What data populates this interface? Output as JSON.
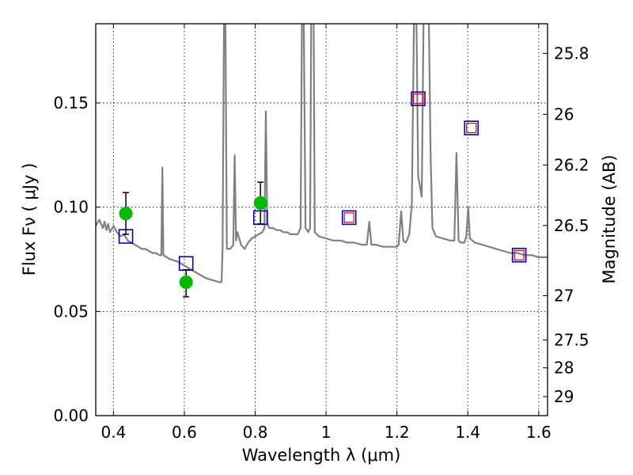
{
  "chart_data": {
    "type": "line",
    "title": "",
    "xlabel": "Wavelength  λ (μm)",
    "ylabel": "Flux  Fν  ( μJy )",
    "y2label": "Magnitude (AB)",
    "xlim": [
      0.35,
      1.625
    ],
    "ylim": [
      0.0,
      0.188
    ],
    "grid": true,
    "x_ticks": [
      {
        "value": 0.4,
        "label": "0.4"
      },
      {
        "value": 0.6,
        "label": "0.6"
      },
      {
        "value": 0.8,
        "label": "0.8"
      },
      {
        "value": 1.0,
        "label": "1"
      },
      {
        "value": 1.2,
        "label": "1.2"
      },
      {
        "value": 1.4,
        "label": "1.4"
      },
      {
        "value": 1.6,
        "label": "1.6"
      }
    ],
    "y_ticks": [
      {
        "value": 0.0,
        "label": "0.00"
      },
      {
        "value": 0.05,
        "label": "0.05"
      },
      {
        "value": 0.1,
        "label": "0.10"
      },
      {
        "value": 0.15,
        "label": "0.15"
      }
    ],
    "y2_ticks": [
      {
        "value": 25.8,
        "label": "25.8"
      },
      {
        "value": 26.0,
        "label": "26"
      },
      {
        "value": 26.2,
        "label": "26.2"
      },
      {
        "value": 26.5,
        "label": "26.5"
      },
      {
        "value": 27.0,
        "label": "27"
      },
      {
        "value": 27.5,
        "label": "27.5"
      },
      {
        "value": 28.0,
        "label": "28"
      },
      {
        "value": 29.0,
        "label": "29"
      }
    ],
    "series": [
      {
        "kind": "spectrum",
        "color": "#808080",
        "points": [
          [
            0.35,
            0.091
          ],
          [
            0.36,
            0.094
          ],
          [
            0.365,
            0.092
          ],
          [
            0.37,
            0.09
          ],
          [
            0.375,
            0.093
          ],
          [
            0.38,
            0.089
          ],
          [
            0.385,
            0.092
          ],
          [
            0.39,
            0.088
          ],
          [
            0.4,
            0.091
          ],
          [
            0.41,
            0.088
          ],
          [
            0.42,
            0.086
          ],
          [
            0.43,
            0.087
          ],
          [
            0.44,
            0.084
          ],
          [
            0.45,
            0.083
          ],
          [
            0.46,
            0.082
          ],
          [
            0.47,
            0.081
          ],
          [
            0.48,
            0.08
          ],
          [
            0.49,
            0.08
          ],
          [
            0.5,
            0.079
          ],
          [
            0.51,
            0.078
          ],
          [
            0.52,
            0.078
          ],
          [
            0.53,
            0.077
          ],
          [
            0.535,
            0.077
          ],
          [
            0.538,
            0.119
          ],
          [
            0.541,
            0.077
          ],
          [
            0.55,
            0.076
          ],
          [
            0.56,
            0.075
          ],
          [
            0.58,
            0.074
          ],
          [
            0.6,
            0.072
          ],
          [
            0.62,
            0.07
          ],
          [
            0.64,
            0.068
          ],
          [
            0.66,
            0.066
          ],
          [
            0.68,
            0.065
          ],
          [
            0.7,
            0.064
          ],
          [
            0.705,
            0.064
          ],
          [
            0.708,
            0.08
          ],
          [
            0.712,
            0.19
          ],
          [
            0.716,
            0.19
          ],
          [
            0.72,
            0.08
          ],
          [
            0.73,
            0.08
          ],
          [
            0.738,
            0.082
          ],
          [
            0.742,
            0.125
          ],
          [
            0.746,
            0.084
          ],
          [
            0.75,
            0.088
          ],
          [
            0.76,
            0.082
          ],
          [
            0.77,
            0.08
          ],
          [
            0.78,
            0.083
          ],
          [
            0.79,
            0.085
          ],
          [
            0.8,
            0.086
          ],
          [
            0.81,
            0.087
          ],
          [
            0.82,
            0.088
          ],
          [
            0.826,
            0.09
          ],
          [
            0.83,
            0.146
          ],
          [
            0.834,
            0.092
          ],
          [
            0.84,
            0.09
          ],
          [
            0.85,
            0.09
          ],
          [
            0.86,
            0.089
          ],
          [
            0.87,
            0.089
          ],
          [
            0.88,
            0.088
          ],
          [
            0.89,
            0.088
          ],
          [
            0.9,
            0.087
          ],
          [
            0.92,
            0.087
          ],
          [
            0.928,
            0.09
          ],
          [
            0.932,
            0.19
          ],
          [
            0.937,
            0.19
          ],
          [
            0.942,
            0.09
          ],
          [
            0.95,
            0.088
          ],
          [
            0.955,
            0.09
          ],
          [
            0.958,
            0.19
          ],
          [
            0.965,
            0.19
          ],
          [
            0.968,
            0.088
          ],
          [
            0.98,
            0.086
          ],
          [
            1.0,
            0.085
          ],
          [
            1.02,
            0.084
          ],
          [
            1.04,
            0.084
          ],
          [
            1.06,
            0.083
          ],
          [
            1.08,
            0.083
          ],
          [
            1.1,
            0.082
          ],
          [
            1.115,
            0.082
          ],
          [
            1.122,
            0.093
          ],
          [
            1.128,
            0.082
          ],
          [
            1.14,
            0.082
          ],
          [
            1.16,
            0.081
          ],
          [
            1.18,
            0.081
          ],
          [
            1.2,
            0.081
          ],
          [
            1.205,
            0.082
          ],
          [
            1.212,
            0.098
          ],
          [
            1.218,
            0.084
          ],
          [
            1.225,
            0.083
          ],
          [
            1.235,
            0.087
          ],
          [
            1.242,
            0.102
          ],
          [
            1.248,
            0.19
          ],
          [
            1.255,
            0.19
          ],
          [
            1.26,
            0.115
          ],
          [
            1.27,
            0.105
          ],
          [
            1.275,
            0.19
          ],
          [
            1.29,
            0.19
          ],
          [
            1.295,
            0.125
          ],
          [
            1.3,
            0.09
          ],
          [
            1.31,
            0.086
          ],
          [
            1.33,
            0.085
          ],
          [
            1.35,
            0.084
          ],
          [
            1.362,
            0.084
          ],
          [
            1.368,
            0.126
          ],
          [
            1.374,
            0.084
          ],
          [
            1.38,
            0.083
          ],
          [
            1.39,
            0.083
          ],
          [
            1.396,
            0.086
          ],
          [
            1.401,
            0.1
          ],
          [
            1.406,
            0.085
          ],
          [
            1.42,
            0.083
          ],
          [
            1.44,
            0.082
          ],
          [
            1.46,
            0.081
          ],
          [
            1.48,
            0.08
          ],
          [
            1.5,
            0.079
          ],
          [
            1.52,
            0.078
          ],
          [
            1.54,
            0.078
          ],
          [
            1.56,
            0.077
          ],
          [
            1.58,
            0.077
          ],
          [
            1.6,
            0.076
          ],
          [
            1.625,
            0.076
          ]
        ]
      },
      {
        "kind": "photometry",
        "marker": "circle",
        "color": "#00bb00",
        "points": [
          {
            "x": 0.435,
            "y": 0.097,
            "yerr_low": 0.087,
            "yerr_high": 0.107
          },
          {
            "x": 0.605,
            "y": 0.064,
            "yerr_low": 0.057,
            "yerr_high": 0.07
          },
          {
            "x": 0.815,
            "y": 0.102,
            "yerr_low": 0.092,
            "yerr_high": 0.112
          }
        ]
      },
      {
        "kind": "model",
        "marker": "square",
        "color": "#0000cc",
        "points": [
          {
            "x": 0.435,
            "y": 0.086
          },
          {
            "x": 0.605,
            "y": 0.073
          },
          {
            "x": 0.815,
            "y": 0.095
          },
          {
            "x": 1.065,
            "y": 0.095
          },
          {
            "x": 1.26,
            "y": 0.152
          },
          {
            "x": 1.41,
            "y": 0.138
          },
          {
            "x": 1.545,
            "y": 0.077
          }
        ]
      },
      {
        "kind": "model-inner",
        "marker": "square",
        "color": "#dd0000",
        "points": [
          {
            "x": 1.065,
            "y": 0.095
          },
          {
            "x": 1.26,
            "y": 0.152
          },
          {
            "x": 1.41,
            "y": 0.138
          },
          {
            "x": 1.545,
            "y": 0.077
          }
        ]
      }
    ]
  }
}
